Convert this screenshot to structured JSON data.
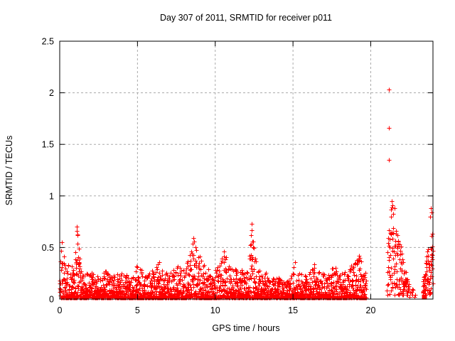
{
  "chart_data": {
    "type": "scatter",
    "title": "Day 307 of 2011, SRMTID for receiver p011",
    "xlabel": "GPS time / hours",
    "ylabel": "SRMTID / TECUs",
    "xlim": [
      0,
      24
    ],
    "ylim": [
      0,
      2.5
    ],
    "xticks": [
      0,
      5,
      10,
      15,
      20
    ],
    "yticks": [
      0,
      0.5,
      1,
      1.5,
      2,
      2.5
    ],
    "ytick_labels": [
      "0",
      "0.5",
      "1",
      "1.5",
      "2",
      "2.5"
    ],
    "grid": true,
    "legend": "none",
    "marker": "plus",
    "colors": {
      "points": "#ff0000",
      "grid": "#aaaaaa",
      "axis": "#000000",
      "text": "#000000",
      "background": "#ffffff"
    },
    "seed": 42,
    "outlier_points": [
      [
        21.17,
        2.03
      ],
      [
        21.17,
        1.66
      ],
      [
        21.17,
        1.35
      ]
    ],
    "square_point": [
      23.45,
      0.02
    ],
    "peak_points": [
      [
        0.12,
        0.55
      ],
      [
        0.08,
        0.47
      ],
      [
        1.08,
        0.66
      ],
      [
        1.1,
        0.7
      ],
      [
        1.12,
        0.63
      ],
      [
        4.95,
        0.32
      ],
      [
        6.4,
        0.36
      ],
      [
        8.58,
        0.59
      ],
      [
        8.66,
        0.56
      ],
      [
        8.72,
        0.5
      ],
      [
        10.55,
        0.46
      ],
      [
        12.33,
        0.73
      ],
      [
        12.36,
        0.67
      ],
      [
        12.3,
        0.62
      ],
      [
        12.38,
        0.56
      ],
      [
        15.15,
        0.36
      ],
      [
        16.35,
        0.34
      ],
      [
        19.25,
        0.42
      ],
      [
        19.1,
        0.38
      ],
      [
        21.35,
        0.95
      ],
      [
        21.4,
        0.91
      ],
      [
        21.3,
        0.87
      ],
      [
        21.55,
        0.88
      ],
      [
        23.88,
        0.88
      ],
      [
        23.92,
        0.84
      ],
      [
        23.8,
        0.8
      ]
    ],
    "segments": [
      {
        "name": "main-band",
        "x_start": 0.0,
        "x_end": 19.7,
        "y_min": 0.012,
        "points_per_hour": 125,
        "power": 2.6,
        "envelope": [
          [
            0.0,
            0.5
          ],
          [
            0.15,
            0.55
          ],
          [
            0.3,
            0.42
          ],
          [
            0.5,
            0.35
          ],
          [
            0.75,
            0.3
          ],
          [
            0.95,
            0.45
          ],
          [
            1.1,
            0.7
          ],
          [
            1.25,
            0.5
          ],
          [
            1.4,
            0.3
          ],
          [
            1.7,
            0.25
          ],
          [
            2.0,
            0.28
          ],
          [
            2.3,
            0.25
          ],
          [
            2.6,
            0.27
          ],
          [
            3.0,
            0.28
          ],
          [
            3.4,
            0.24
          ],
          [
            3.8,
            0.26
          ],
          [
            4.2,
            0.24
          ],
          [
            4.6,
            0.22
          ],
          [
            4.9,
            0.33
          ],
          [
            5.2,
            0.3
          ],
          [
            5.5,
            0.24
          ],
          [
            5.8,
            0.28
          ],
          [
            6.1,
            0.3
          ],
          [
            6.4,
            0.37
          ],
          [
            6.7,
            0.3
          ],
          [
            7.0,
            0.26
          ],
          [
            7.3,
            0.3
          ],
          [
            7.6,
            0.33
          ],
          [
            7.9,
            0.3
          ],
          [
            8.2,
            0.38
          ],
          [
            8.5,
            0.55
          ],
          [
            8.7,
            0.6
          ],
          [
            8.9,
            0.48
          ],
          [
            9.1,
            0.4
          ],
          [
            9.4,
            0.32
          ],
          [
            9.7,
            0.28
          ],
          [
            10.0,
            0.3
          ],
          [
            10.3,
            0.36
          ],
          [
            10.6,
            0.46
          ],
          [
            10.9,
            0.36
          ],
          [
            11.2,
            0.31
          ],
          [
            11.5,
            0.34
          ],
          [
            11.8,
            0.3
          ],
          [
            12.1,
            0.36
          ],
          [
            12.35,
            0.73
          ],
          [
            12.5,
            0.52
          ],
          [
            12.7,
            0.32
          ],
          [
            13.0,
            0.28
          ],
          [
            13.3,
            0.26
          ],
          [
            13.6,
            0.22
          ],
          [
            13.9,
            0.24
          ],
          [
            14.2,
            0.2
          ],
          [
            14.5,
            0.16
          ],
          [
            14.8,
            0.2
          ],
          [
            15.1,
            0.36
          ],
          [
            15.4,
            0.28
          ],
          [
            15.7,
            0.22
          ],
          [
            16.0,
            0.28
          ],
          [
            16.3,
            0.34
          ],
          [
            16.6,
            0.28
          ],
          [
            16.9,
            0.26
          ],
          [
            17.2,
            0.29
          ],
          [
            17.5,
            0.33
          ],
          [
            17.8,
            0.3
          ],
          [
            18.1,
            0.26
          ],
          [
            18.4,
            0.29
          ],
          [
            18.7,
            0.33
          ],
          [
            19.0,
            0.38
          ],
          [
            19.3,
            0.42
          ],
          [
            19.7,
            0.25
          ]
        ]
      },
      {
        "name": "cluster-21-22",
        "x_start": 21.05,
        "x_end": 22.45,
        "y_min": 0.04,
        "points_per_hour": 95,
        "power": 1.15,
        "envelope": [
          [
            21.05,
            0.55
          ],
          [
            21.2,
            0.78
          ],
          [
            21.35,
            0.95
          ],
          [
            21.5,
            0.9
          ],
          [
            21.65,
            0.75
          ],
          [
            21.8,
            0.62
          ],
          [
            21.95,
            0.55
          ],
          [
            22.1,
            0.42
          ],
          [
            22.25,
            0.28
          ],
          [
            22.45,
            0.15
          ]
        ]
      },
      {
        "name": "sparse-22.5-23",
        "x_start": 22.5,
        "x_end": 22.9,
        "y_min": 0.02,
        "points_per_hour": 20,
        "power": 1.5,
        "envelope": [
          [
            22.5,
            0.12
          ],
          [
            22.9,
            0.08
          ]
        ]
      },
      {
        "name": "cluster-23.4-24",
        "x_start": 23.35,
        "x_end": 24.0,
        "y_min": 0.04,
        "points_per_hour": 115,
        "power": 1.2,
        "envelope": [
          [
            23.35,
            0.2
          ],
          [
            23.5,
            0.32
          ],
          [
            23.65,
            0.55
          ],
          [
            23.8,
            0.8
          ],
          [
            23.9,
            0.88
          ],
          [
            24.0,
            0.6
          ]
        ]
      }
    ]
  }
}
